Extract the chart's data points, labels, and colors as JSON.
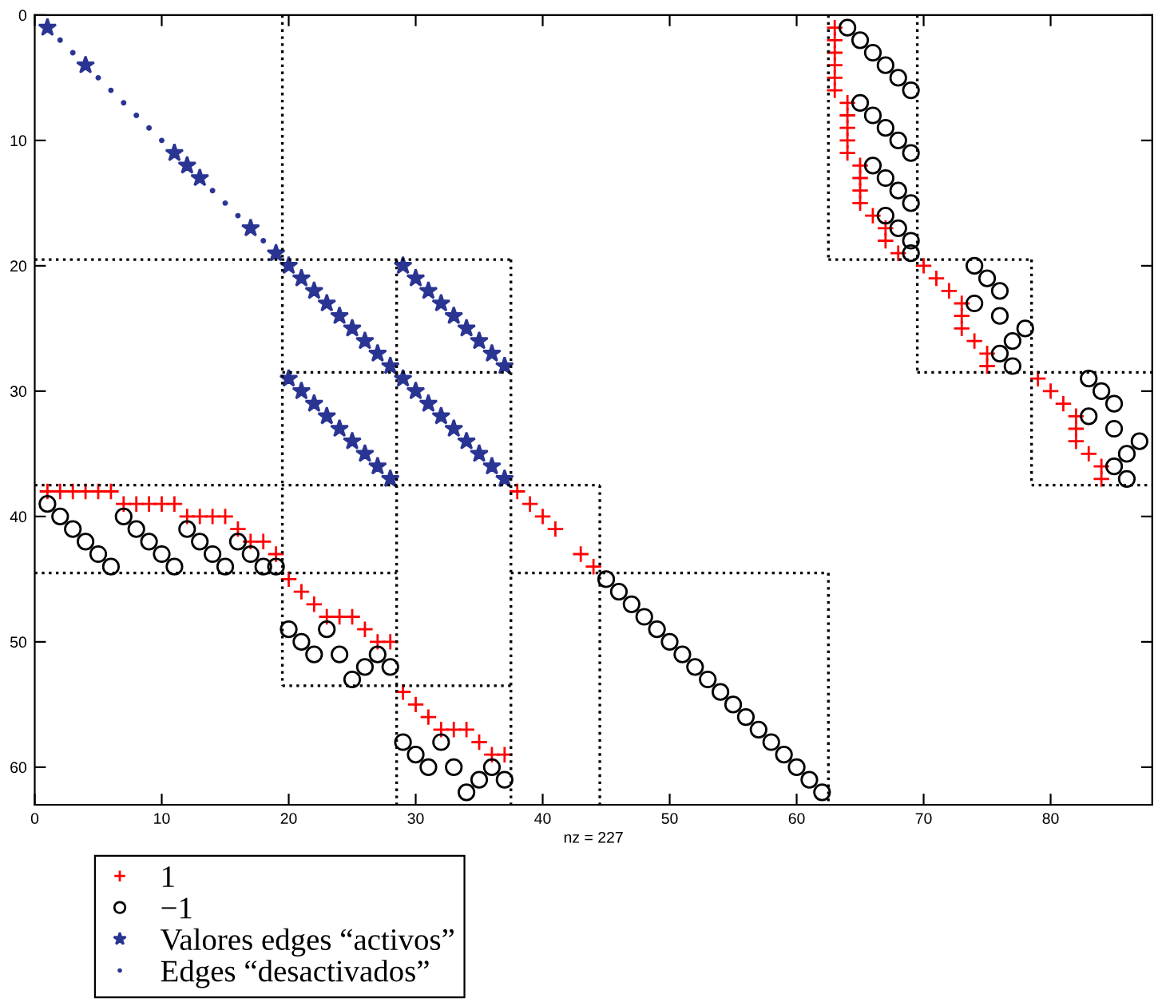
{
  "chart_data": {
    "type": "scatter",
    "xlabel": "nz = 227",
    "xlim": [
      0,
      88
    ],
    "ylim": [
      63,
      0
    ],
    "xticks": [
      0,
      10,
      20,
      30,
      40,
      50,
      60,
      70,
      80
    ],
    "yticks": [
      0,
      10,
      20,
      30,
      40,
      50,
      60
    ],
    "grid": false,
    "legend": "bottom",
    "series": [
      {
        "name": "1",
        "color": "#ff0000",
        "marker": "cross",
        "x": [
          1,
          2,
          3,
          4,
          5,
          6,
          7,
          8,
          9,
          10,
          11,
          12,
          13,
          14,
          15,
          16,
          17,
          18,
          19,
          20,
          21,
          22,
          23,
          24,
          25,
          26,
          27,
          28,
          29,
          30,
          31,
          32,
          33,
          34,
          35,
          36,
          37,
          38,
          39,
          40,
          41,
          43,
          44,
          63,
          63,
          63,
          63,
          63,
          63,
          64,
          64,
          64,
          64,
          64,
          65,
          65,
          65,
          65,
          66,
          67,
          67,
          68,
          70,
          71,
          72,
          73,
          73,
          73,
          74,
          75,
          75,
          79,
          80,
          81,
          82,
          82,
          82,
          83,
          84,
          84
        ],
        "values": [
          38,
          38,
          38,
          38,
          38,
          38,
          39,
          39,
          39,
          39,
          39,
          40,
          40,
          40,
          40,
          41,
          42,
          42,
          43,
          45,
          46,
          47,
          48,
          48,
          48,
          49,
          50,
          50,
          54,
          55,
          56,
          57,
          57,
          57,
          58,
          59,
          59,
          38,
          39,
          40,
          41,
          43,
          44,
          1,
          2,
          3,
          4,
          5,
          6,
          7,
          8,
          9,
          10,
          11,
          12,
          13,
          14,
          15,
          16,
          17,
          18,
          19,
          20,
          21,
          22,
          23,
          24,
          25,
          26,
          27,
          28,
          29,
          30,
          31,
          32,
          33,
          34,
          35,
          36,
          37
        ]
      },
      {
        "name": "−1",
        "color": "#000000",
        "marker": "circle",
        "x": [
          1,
          2,
          3,
          4,
          5,
          6,
          7,
          8,
          9,
          10,
          11,
          12,
          13,
          14,
          15,
          16,
          17,
          18,
          19,
          20,
          23,
          21,
          22,
          24,
          27,
          26,
          28,
          25,
          29,
          32,
          30,
          31,
          33,
          36,
          35,
          37,
          34,
          45,
          46,
          47,
          48,
          49,
          50,
          51,
          52,
          53,
          54,
          55,
          56,
          57,
          58,
          59,
          60,
          61,
          62,
          64,
          65,
          66,
          67,
          68,
          69,
          65,
          66,
          67,
          68,
          69,
          66,
          67,
          68,
          69,
          67,
          68,
          69,
          69,
          74,
          75,
          76,
          74,
          76,
          78,
          77,
          76,
          77,
          83,
          84,
          85,
          83,
          85,
          87,
          86,
          85,
          86
        ],
        "values": [
          39,
          40,
          41,
          42,
          43,
          44,
          40,
          41,
          42,
          43,
          44,
          41,
          42,
          43,
          44,
          42,
          43,
          44,
          44,
          49,
          49,
          50,
          51,
          51,
          51,
          52,
          52,
          53,
          58,
          58,
          59,
          60,
          60,
          60,
          61,
          61,
          62,
          45,
          46,
          47,
          48,
          49,
          50,
          51,
          52,
          53,
          54,
          55,
          56,
          57,
          58,
          59,
          60,
          61,
          62,
          1,
          2,
          3,
          4,
          5,
          6,
          7,
          8,
          9,
          10,
          11,
          12,
          13,
          14,
          15,
          16,
          17,
          18,
          19,
          20,
          21,
          22,
          23,
          24,
          25,
          26,
          27,
          28,
          29,
          30,
          31,
          32,
          33,
          34,
          35,
          36,
          37
        ]
      },
      {
        "name": "Valores edges “activos”",
        "color": "#2a3593",
        "marker": "star",
        "x": [
          1,
          4,
          11,
          12,
          13,
          17,
          19,
          20,
          21,
          22,
          23,
          24,
          25,
          26,
          27,
          28,
          29,
          30,
          31,
          32,
          33,
          34,
          35,
          36,
          37,
          20,
          21,
          22,
          23,
          24,
          25,
          26,
          27,
          28,
          29,
          30,
          31,
          32,
          33,
          34,
          35,
          36,
          37
        ],
        "values": [
          1,
          4,
          11,
          12,
          13,
          17,
          19,
          20,
          21,
          22,
          23,
          24,
          25,
          26,
          27,
          28,
          20,
          21,
          22,
          23,
          24,
          25,
          26,
          27,
          28,
          29,
          30,
          31,
          32,
          33,
          34,
          35,
          36,
          37,
          29,
          30,
          31,
          32,
          33,
          34,
          35,
          36,
          37
        ]
      },
      {
        "name": "Edges “desactivados”",
        "color": "#2a3593",
        "marker": "point",
        "x": [
          2,
          3,
          5,
          6,
          7,
          8,
          9,
          10,
          14,
          15,
          16,
          18
        ],
        "values": [
          2,
          3,
          5,
          6,
          7,
          8,
          9,
          10,
          14,
          15,
          16,
          18
        ]
      },
      {
        "type": "line",
        "color": "#000000",
        "line_style": "dotted",
        "x": [
          19.5,
          19.5
        ],
        "values": [
          0,
          53.5
        ]
      },
      {
        "type": "line",
        "color": "#000000",
        "line_style": "dotted",
        "x": [
          0,
          37.5
        ],
        "values": [
          19.5,
          19.5
        ]
      },
      {
        "type": "line",
        "color": "#000000",
        "line_style": "dotted",
        "x": [
          19.5,
          37.5
        ],
        "values": [
          28.5,
          28.5
        ]
      },
      {
        "type": "line",
        "color": "#000000",
        "line_style": "dotted",
        "x": [
          28.5,
          28.5
        ],
        "values": [
          19.5,
          63
        ]
      },
      {
        "type": "line",
        "color": "#000000",
        "line_style": "dotted",
        "x": [
          37.5,
          37.5
        ],
        "values": [
          19.5,
          63
        ]
      },
      {
        "type": "line",
        "color": "#000000",
        "line_style": "dotted",
        "x": [
          0,
          44.5
        ],
        "values": [
          37.5,
          37.5
        ]
      },
      {
        "type": "line",
        "color": "#000000",
        "line_style": "dotted",
        "x": [
          0,
          28.5
        ],
        "values": [
          44.5,
          44.5
        ]
      },
      {
        "type": "line",
        "color": "#000000",
        "line_style": "dotted",
        "x": [
          37.5,
          62.5
        ],
        "values": [
          44.5,
          44.5
        ]
      },
      {
        "type": "line",
        "color": "#000000",
        "line_style": "dotted",
        "x": [
          19.5,
          37.5
        ],
        "values": [
          53.5,
          53.5
        ]
      },
      {
        "type": "line",
        "color": "#000000",
        "line_style": "dotted",
        "x": [
          44.5,
          44.5
        ],
        "values": [
          37.5,
          63
        ]
      },
      {
        "type": "line",
        "color": "#000000",
        "line_style": "dotted",
        "x": [
          62.5,
          62.5
        ],
        "values": [
          0,
          19.5
        ]
      },
      {
        "type": "line",
        "color": "#000000",
        "line_style": "dotted",
        "x": [
          62.5,
          62.5
        ],
        "values": [
          44.5,
          63
        ]
      },
      {
        "type": "line",
        "color": "#000000",
        "line_style": "dotted",
        "x": [
          69.5,
          69.5
        ],
        "values": [
          0,
          28.5
        ]
      },
      {
        "type": "line",
        "color": "#000000",
        "line_style": "dotted",
        "x": [
          62.5,
          78.5
        ],
        "values": [
          19.5,
          19.5
        ]
      },
      {
        "type": "line",
        "color": "#000000",
        "line_style": "dotted",
        "x": [
          69.5,
          88
        ],
        "values": [
          28.5,
          28.5
        ]
      },
      {
        "type": "line",
        "color": "#000000",
        "line_style": "dotted",
        "x": [
          78.5,
          78.5
        ],
        "values": [
          19.5,
          37.5
        ]
      },
      {
        "type": "line",
        "color": "#000000",
        "line_style": "dotted",
        "x": [
          78.5,
          88
        ],
        "values": [
          37.5,
          37.5
        ]
      }
    ]
  }
}
